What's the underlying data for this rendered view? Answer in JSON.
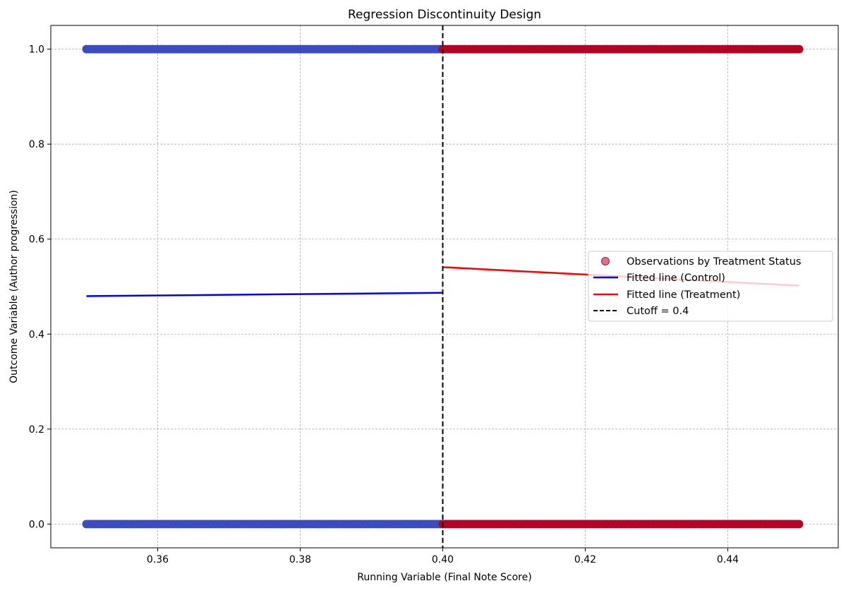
{
  "chart_data": {
    "type": "scatter",
    "title": "Regression Discontinuity Design",
    "xlabel": "Running Variable (Final Note Score)",
    "ylabel": "Outcome Variable (Author progression)",
    "xlim": [
      0.345,
      0.4555
    ],
    "ylim": [
      -0.05,
      1.05
    ],
    "x_ticks": [
      0.36,
      0.38,
      0.4,
      0.42,
      0.44
    ],
    "x_tick_labels": [
      "0.36",
      "0.38",
      "0.40",
      "0.42",
      "0.44"
    ],
    "y_ticks": [
      0.0,
      0.2,
      0.4,
      0.6,
      0.8,
      1.0
    ],
    "y_tick_labels": [
      "0.0",
      "0.2",
      "0.4",
      "0.6",
      "0.8",
      "1.0"
    ],
    "grid": true,
    "cutoff": 0.4,
    "scatter": {
      "name": "Observations by Treatment Status",
      "x_min": 0.35,
      "x_max": 0.45,
      "y_levels": [
        0,
        1
      ],
      "control_color": "#3b4cc0",
      "treatment_color": "#b40426"
    },
    "series": [
      {
        "name": "Fitted line (Control)",
        "x": [
          0.35,
          0.4
        ],
        "y": [
          0.48,
          0.487
        ],
        "color": "#0000ff"
      },
      {
        "name": "Fitted line (Treatment)",
        "x": [
          0.4,
          0.45
        ],
        "y": [
          0.541,
          0.502
        ],
        "color": "#ff0000"
      }
    ],
    "cutoff_line": {
      "name": "Cutoff = 0.4",
      "x": 0.4,
      "color": "#000000"
    },
    "legend": {
      "placement": "center-right",
      "entries": [
        "Observations by Treatment Status",
        "Fitted line (Control)",
        "Fitted line (Treatment)",
        "Cutoff = 0.4"
      ]
    }
  }
}
